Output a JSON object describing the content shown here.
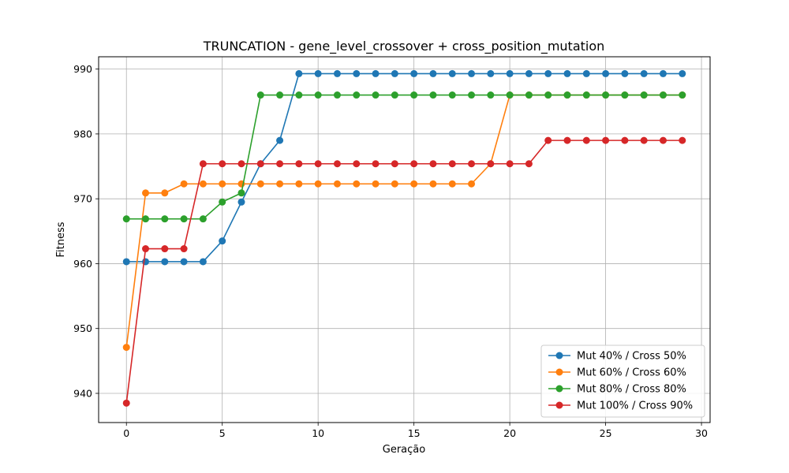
{
  "chart_data": {
    "type": "line",
    "title": "TRUNCATION - gene_level_crossover + cross_position_mutation",
    "xlabel": "Geração",
    "ylabel": "Fitness",
    "xlim": [
      -1.45,
      30.45
    ],
    "ylim": [
      935.5,
      991.9
    ],
    "xticks": [
      0,
      5,
      10,
      15,
      20,
      25,
      30
    ],
    "yticks": [
      940,
      950,
      960,
      970,
      980,
      990
    ],
    "grid": true,
    "legend_position": "lower-right",
    "x": [
      0,
      1,
      2,
      3,
      4,
      5,
      6,
      7,
      8,
      9,
      10,
      11,
      12,
      13,
      14,
      15,
      16,
      17,
      18,
      19,
      20,
      21,
      22,
      23,
      24,
      25,
      26,
      27,
      28,
      29
    ],
    "series": [
      {
        "name": "Mut 40% / Cross 50%",
        "color": "#1f77b4",
        "values": [
          960.3,
          960.3,
          960.3,
          960.3,
          960.3,
          963.5,
          969.5,
          975.4,
          979.0,
          989.3,
          989.3,
          989.3,
          989.3,
          989.3,
          989.3,
          989.3,
          989.3,
          989.3,
          989.3,
          989.3,
          989.3,
          989.3,
          989.3,
          989.3,
          989.3,
          989.3,
          989.3,
          989.3,
          989.3,
          989.3
        ]
      },
      {
        "name": "Mut 60% / Cross 60%",
        "color": "#ff7f0e",
        "values": [
          947.1,
          970.9,
          970.9,
          972.3,
          972.3,
          972.3,
          972.3,
          972.3,
          972.3,
          972.3,
          972.3,
          972.3,
          972.3,
          972.3,
          972.3,
          972.3,
          972.3,
          972.3,
          972.3,
          975.4,
          986.0,
          986.0,
          986.0,
          986.0,
          986.0,
          986.0,
          986.0,
          986.0,
          986.0,
          986.0
        ]
      },
      {
        "name": "Mut 80% / Cross 80%",
        "color": "#2ca02c",
        "values": [
          966.9,
          966.9,
          966.9,
          966.9,
          966.9,
          969.5,
          970.9,
          986.0,
          986.0,
          986.0,
          986.0,
          986.0,
          986.0,
          986.0,
          986.0,
          986.0,
          986.0,
          986.0,
          986.0,
          986.0,
          986.0,
          986.0,
          986.0,
          986.0,
          986.0,
          986.0,
          986.0,
          986.0,
          986.0,
          986.0
        ]
      },
      {
        "name": "Mut 100% / Cross 90%",
        "color": "#d62728",
        "values": [
          938.5,
          962.3,
          962.3,
          962.3,
          975.4,
          975.4,
          975.4,
          975.4,
          975.4,
          975.4,
          975.4,
          975.4,
          975.4,
          975.4,
          975.4,
          975.4,
          975.4,
          975.4,
          975.4,
          975.4,
          975.4,
          975.4,
          979.0,
          979.0,
          979.0,
          979.0,
          979.0,
          979.0,
          979.0,
          979.0
        ]
      }
    ]
  }
}
